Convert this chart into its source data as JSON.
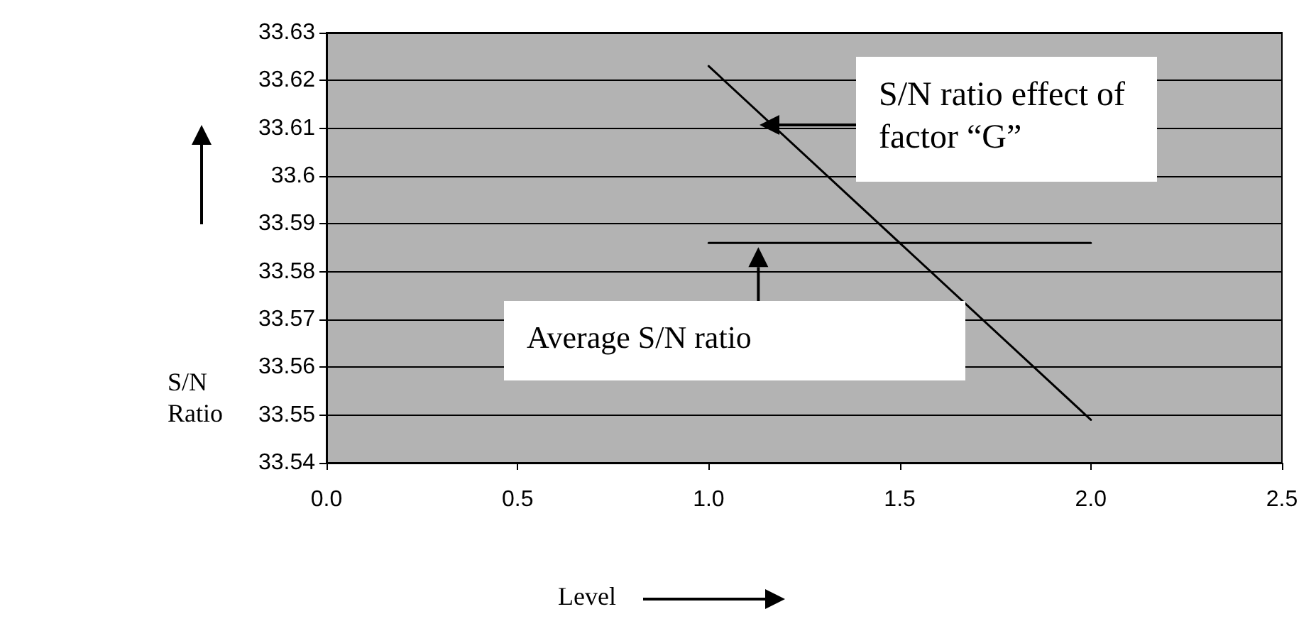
{
  "chart_data": {
    "type": "line",
    "xlabel": "Level",
    "ylabel": "S/N Ratio",
    "xlim": [
      0,
      2.5
    ],
    "xticks": [
      {
        "value": 0,
        "label": "0.0"
      },
      {
        "value": 0.5,
        "label": "0.5"
      },
      {
        "value": 1,
        "label": "1.0"
      },
      {
        "value": 1.5,
        "label": "1.5"
      },
      {
        "value": 2,
        "label": "2.0"
      },
      {
        "value": 2.5,
        "label": "2.5"
      }
    ],
    "ylim": [
      33.54,
      33.63
    ],
    "yticks": [
      33.54,
      33.55,
      33.56,
      33.57,
      33.58,
      33.59,
      33.6,
      33.61,
      33.62,
      33.63
    ],
    "grid": "y",
    "marker": "none",
    "line_style": "solid",
    "x": [
      1,
      2
    ],
    "series": [
      {
        "color": "#000000",
        "values": [
          33.623,
          33.549
        ]
      },
      {
        "color": "#000000",
        "values": [
          33.586,
          33.586
        ]
      }
    ],
    "annotations": [
      "S/N ratio effect of factor “G”",
      {
        "text": "Average S/N ratio",
        "x": 1.13,
        "y": 33.586
      }
    ]
  }
}
